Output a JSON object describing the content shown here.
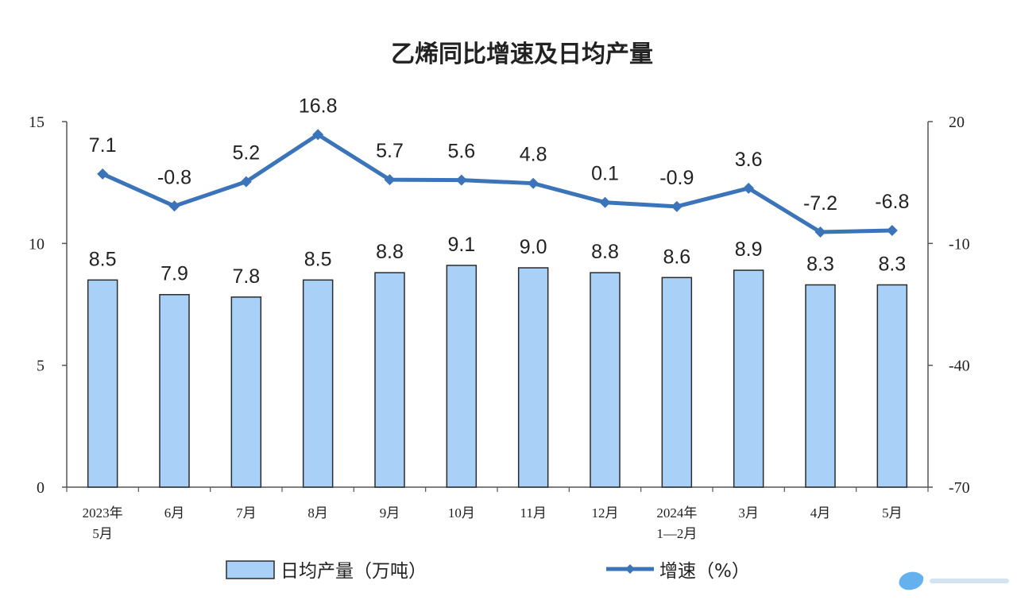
{
  "chart_data": {
    "type": "bar+line",
    "title": "乙烯同比增速及日均产量",
    "categories": [
      [
        "2023年",
        "5月"
      ],
      [
        "6月"
      ],
      [
        "7月"
      ],
      [
        "8月"
      ],
      [
        "9月"
      ],
      [
        "10月"
      ],
      [
        "11月"
      ],
      [
        "12月"
      ],
      [
        "2024年",
        "1—2月"
      ],
      [
        "3月"
      ],
      [
        "4月"
      ],
      [
        "5月"
      ]
    ],
    "series": [
      {
        "name": "日均产量（万吨）",
        "type": "bar",
        "axis": "left",
        "values": [
          8.5,
          7.9,
          7.8,
          8.5,
          8.8,
          9.1,
          9.0,
          8.8,
          8.6,
          8.9,
          8.3,
          8.3
        ],
        "labels": [
          "8.5",
          "7.9",
          "7.8",
          "8.5",
          "8.8",
          "9.1",
          "9.0",
          "8.8",
          "8.6",
          "8.9",
          "8.3",
          "8.3"
        ]
      },
      {
        "name": "增速（%）",
        "type": "line",
        "axis": "right",
        "values": [
          7.1,
          -0.8,
          5.2,
          16.8,
          5.7,
          5.6,
          4.8,
          0.1,
          -0.9,
          3.6,
          -7.2,
          -6.8
        ],
        "labels": [
          "7.1",
          "-0.8",
          "5.2",
          "16.8",
          "5.7",
          "5.6",
          "4.8",
          "0.1",
          "-0.9",
          "3.6",
          "-7.2",
          "-6.8"
        ]
      }
    ],
    "y_left": {
      "range": [
        0,
        15
      ],
      "ticks": [
        0,
        5,
        10,
        15
      ]
    },
    "y_right": {
      "range": [
        -70,
        20
      ],
      "ticks": [
        -70,
        -40,
        -10,
        20
      ]
    },
    "legend": {
      "position": "bottom"
    },
    "grid": false,
    "colors": {
      "bar_fill": "#a9d1f7",
      "bar_stroke": "#2b2b2b",
      "line": "#3b74b8",
      "axis": "#555555",
      "text": "#222222"
    }
  }
}
